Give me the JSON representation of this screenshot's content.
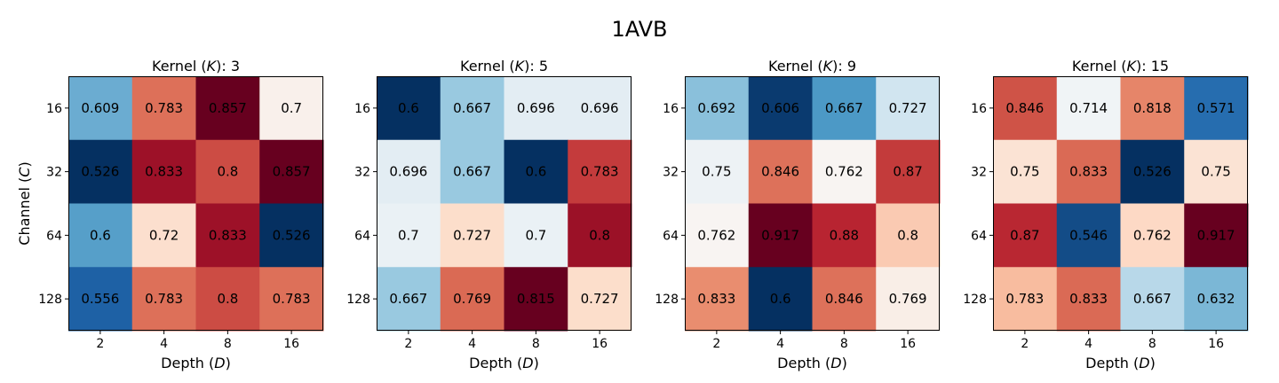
{
  "figure": {
    "title": "1AVB"
  },
  "chart_data": [
    {
      "type": "heatmap",
      "title_prefix": "Kernel (",
      "title_var": "K",
      "title_suffix": "): 3",
      "xlabel_prefix": "Depth (",
      "xlabel_var": "D",
      "xlabel_suffix": ")",
      "ylabel_prefix": "Channel (",
      "ylabel_var": "C",
      "ylabel_suffix": ")",
      "x_ticks": [
        "2",
        "4",
        "8",
        "16"
      ],
      "y_ticks": [
        "16",
        "32",
        "64",
        "128"
      ],
      "values": [
        [
          0.609,
          0.783,
          0.857,
          0.7
        ],
        [
          0.526,
          0.833,
          0.8,
          0.857
        ],
        [
          0.6,
          0.72,
          0.833,
          0.526
        ],
        [
          0.556,
          0.783,
          0.8,
          0.783
        ]
      ],
      "colormap": "RdBu_r"
    },
    {
      "type": "heatmap",
      "title_prefix": "Kernel (",
      "title_var": "K",
      "title_suffix": "): 5",
      "xlabel_prefix": "Depth (",
      "xlabel_var": "D",
      "xlabel_suffix": ")",
      "x_ticks": [
        "2",
        "4",
        "8",
        "16"
      ],
      "y_ticks": [
        "16",
        "32",
        "64",
        "128"
      ],
      "values": [
        [
          0.6,
          0.667,
          0.696,
          0.696
        ],
        [
          0.696,
          0.667,
          0.6,
          0.783
        ],
        [
          0.7,
          0.727,
          0.7,
          0.8
        ],
        [
          0.667,
          0.769,
          0.815,
          0.727
        ]
      ],
      "colormap": "RdBu_r"
    },
    {
      "type": "heatmap",
      "title_prefix": "Kernel (",
      "title_var": "K",
      "title_suffix": "): 9",
      "xlabel_prefix": "Depth (",
      "xlabel_var": "D",
      "xlabel_suffix": ")",
      "x_ticks": [
        "2",
        "4",
        "8",
        "16"
      ],
      "y_ticks": [
        "16",
        "32",
        "64",
        "128"
      ],
      "values": [
        [
          0.692,
          0.606,
          0.667,
          0.727
        ],
        [
          0.75,
          0.846,
          0.762,
          0.87
        ],
        [
          0.762,
          0.917,
          0.88,
          0.8
        ],
        [
          0.833,
          0.6,
          0.846,
          0.769
        ]
      ],
      "colormap": "RdBu_r"
    },
    {
      "type": "heatmap",
      "title_prefix": "Kernel (",
      "title_var": "K",
      "title_suffix": "): 15",
      "xlabel_prefix": "Depth (",
      "xlabel_var": "D",
      "xlabel_suffix": ")",
      "x_ticks": [
        "2",
        "4",
        "8",
        "16"
      ],
      "y_ticks": [
        "16",
        "32",
        "64",
        "128"
      ],
      "values": [
        [
          0.846,
          0.714,
          0.818,
          0.571
        ],
        [
          0.75,
          0.833,
          0.526,
          0.75
        ],
        [
          0.87,
          0.546,
          0.762,
          0.917
        ],
        [
          0.783,
          0.833,
          0.667,
          0.632
        ]
      ],
      "colormap": "RdBu_r"
    }
  ]
}
